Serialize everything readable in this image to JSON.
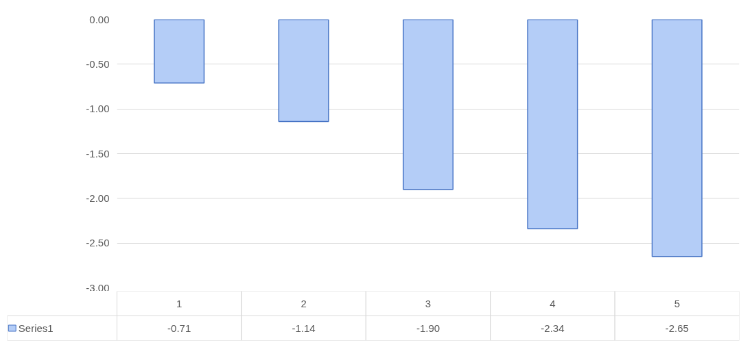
{
  "chart_data": {
    "type": "bar",
    "categories": [
      "1",
      "2",
      "3",
      "4",
      "5"
    ],
    "series": [
      {
        "name": "Series1",
        "color": "#b4cdf7",
        "values": [
          -0.71,
          -1.14,
          -1.9,
          -2.34,
          -2.65
        ],
        "value_labels": [
          "-0.71",
          "-1.14",
          "-1.90",
          "-2.34",
          "-2.65"
        ]
      }
    ],
    "ylim": [
      -3,
      0
    ],
    "yticks": [
      {
        "value": 0,
        "label": "0.00"
      },
      {
        "value": -0.5,
        "label": "-0.50"
      },
      {
        "value": -1,
        "label": "-1.00"
      },
      {
        "value": -1.5,
        "label": "-1.50"
      },
      {
        "value": -2,
        "label": "-2.00"
      },
      {
        "value": -2.5,
        "label": "-2.50"
      },
      {
        "value": -3,
        "label": "-3.00"
      }
    ],
    "grid": "y",
    "legend": "bottom"
  }
}
